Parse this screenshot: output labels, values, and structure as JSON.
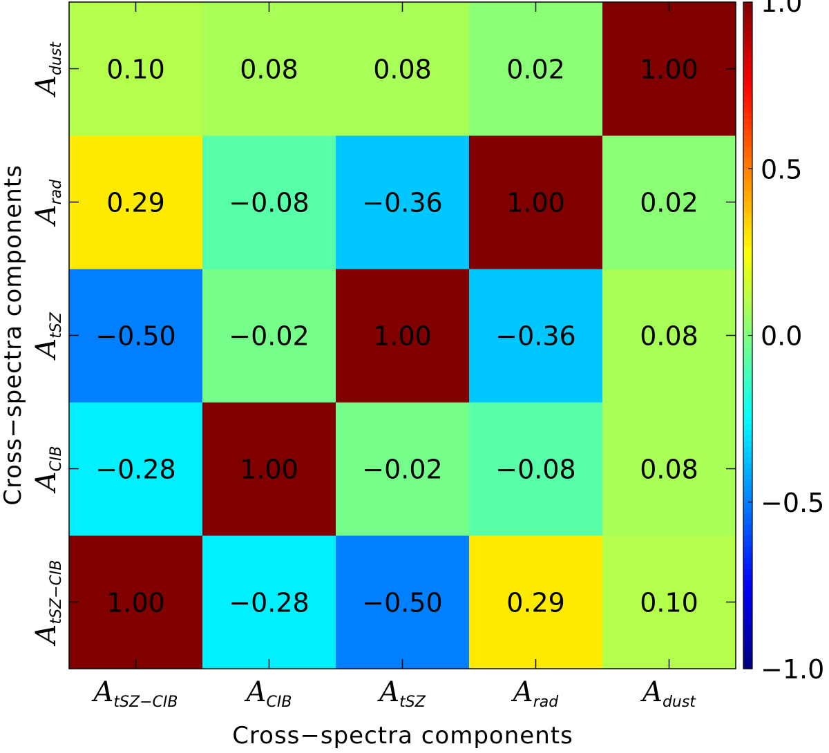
{
  "chart_data": {
    "type": "heatmap",
    "xlabel": "Cross−spectra components",
    "ylabel": "Cross−spectra components",
    "components": [
      {
        "symbol": "A",
        "subscript": "tSZ−CIB"
      },
      {
        "symbol": "A",
        "subscript": "CIB"
      },
      {
        "symbol": "A",
        "subscript": "tSZ"
      },
      {
        "symbol": "A",
        "subscript": "rad"
      },
      {
        "symbol": "A",
        "subscript": "dust"
      }
    ],
    "matrix": [
      [
        1.0,
        -0.28,
        -0.5,
        0.29,
        0.1
      ],
      [
        -0.28,
        1.0,
        -0.02,
        -0.08,
        0.08
      ],
      [
        -0.5,
        -0.02,
        1.0,
        -0.36,
        0.08
      ],
      [
        0.29,
        -0.08,
        -0.36,
        1.0,
        0.02
      ],
      [
        0.1,
        0.08,
        0.08,
        0.02,
        1.0
      ]
    ],
    "colorbar": {
      "range": [
        -1.0,
        1.0
      ],
      "ticks": [
        1.0,
        0.5,
        0.0,
        -0.5,
        -1.0
      ],
      "tick_labels": [
        "1.0",
        "0.5",
        "0.0",
        "−0.5",
        "−1.0"
      ],
      "colormap": "jet"
    }
  }
}
